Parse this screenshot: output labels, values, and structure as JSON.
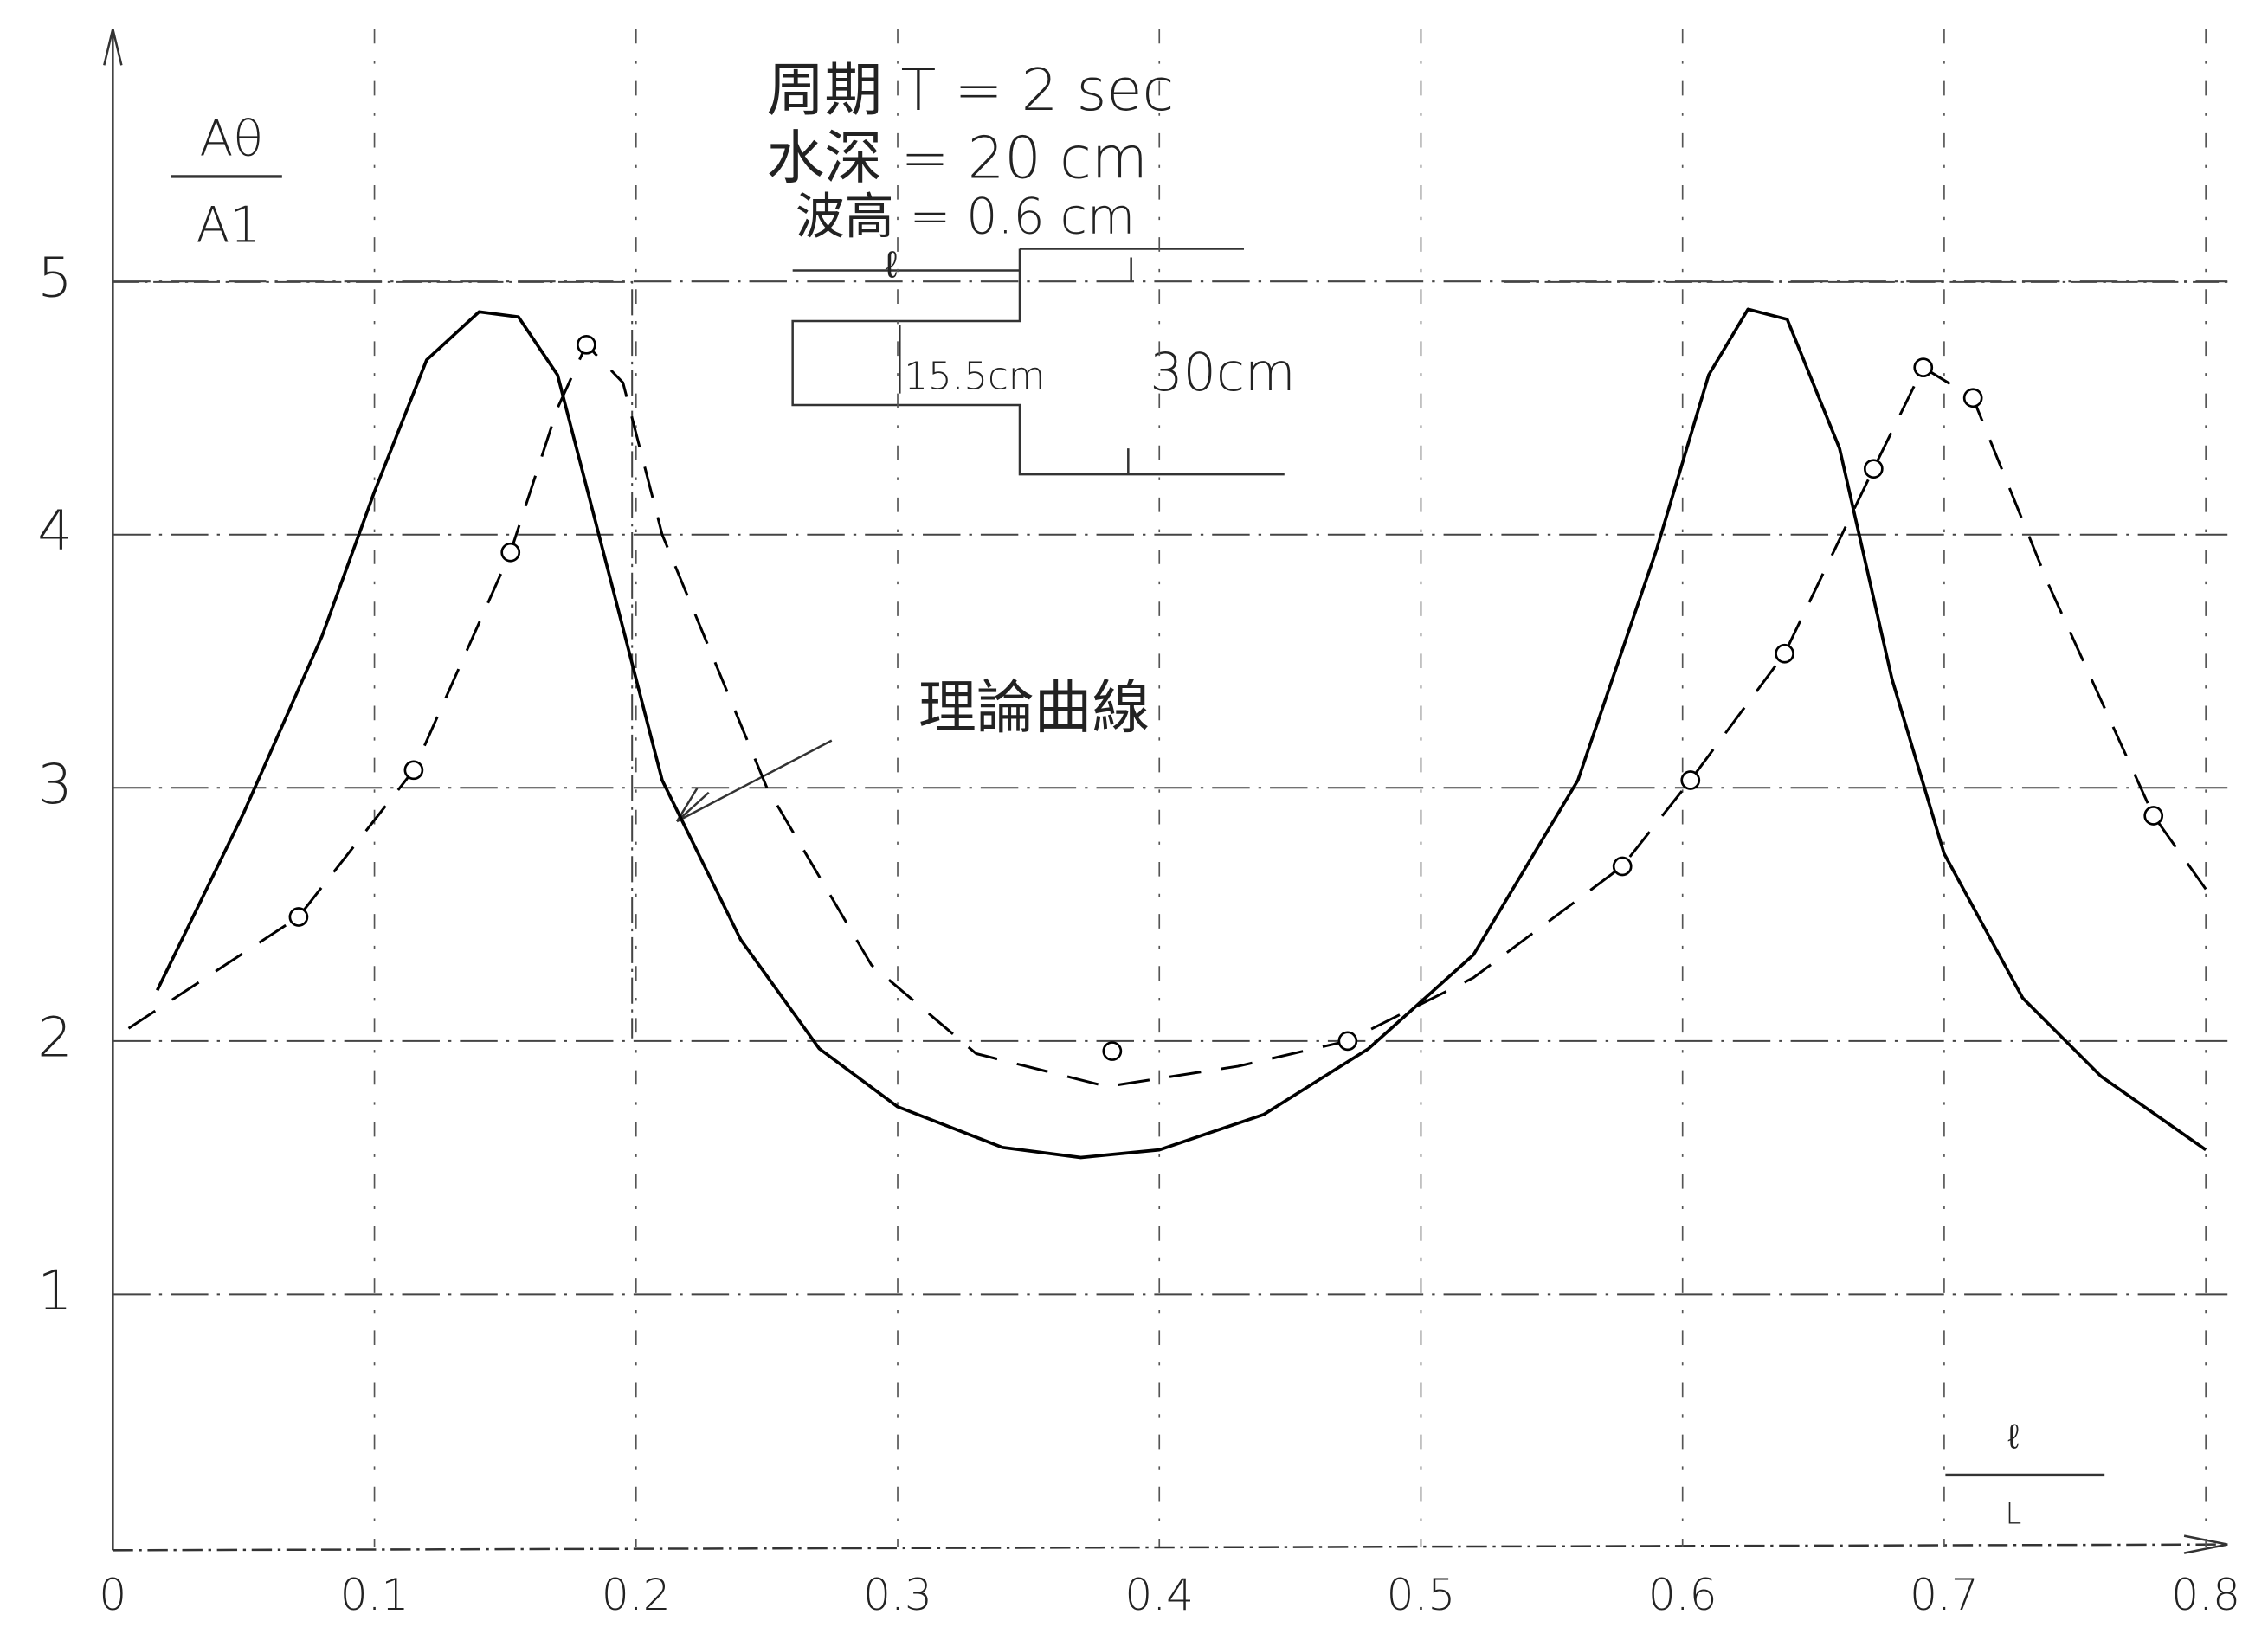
{
  "chart_data": {
    "type": "line",
    "ylabel": {
      "numerator": "Aθ",
      "denominator": "A1"
    },
    "xlabel": {
      "numerator": "ℓ",
      "denominator": "L"
    },
    "annotations": {
      "period": "周期 T = 2 sec",
      "depth": "水深 = 20 cm",
      "height": "波高 = 0.6 cm",
      "step_length": "ℓ",
      "shelf_depth": "15.5cm",
      "deep_depth": "30cm",
      "theory": "理論曲線"
    },
    "xlim": [
      0,
      0.8
    ],
    "ylim": [
      0,
      5.7
    ],
    "xticks": [
      0,
      0.1,
      0.2,
      0.3,
      0.4,
      0.5,
      0.6,
      0.7,
      0.8
    ],
    "yticks": [
      1,
      2,
      3,
      4,
      5
    ],
    "grid": true,
    "series": [
      {
        "style": "solid",
        "color": "#000000",
        "x": [
          0.017,
          0.05,
          0.08,
          0.1,
          0.12,
          0.14,
          0.155,
          0.17,
          0.19,
          0.21,
          0.24,
          0.27,
          0.3,
          0.34,
          0.37,
          0.4,
          0.44,
          0.48,
          0.52,
          0.56,
          0.59,
          0.61,
          0.625,
          0.64,
          0.66,
          0.68,
          0.7,
          0.73,
          0.76,
          0.8
        ],
        "values": [
          2.2,
          2.9,
          3.6,
          4.17,
          4.69,
          4.88,
          4.86,
          4.63,
          3.83,
          3.03,
          2.4,
          1.97,
          1.74,
          1.58,
          1.54,
          1.57,
          1.71,
          1.97,
          2.34,
          3.03,
          3.94,
          4.63,
          4.89,
          4.85,
          4.34,
          3.43,
          2.74,
          2.17,
          1.86,
          1.57
        ]
      },
      {
        "style": "dashed",
        "color": "#000000",
        "x": [
          0.006,
          0.071,
          0.115,
          0.152,
          0.17,
          0.181,
          0.195,
          0.21,
          0.25,
          0.29,
          0.33,
          0.38,
          0.43,
          0.472,
          0.52,
          0.577,
          0.603,
          0.639,
          0.673,
          0.692,
          0.711,
          0.74,
          0.78,
          0.8
        ],
        "values": [
          2.05,
          2.49,
          3.07,
          3.93,
          4.5,
          4.75,
          4.6,
          4.0,
          3.0,
          2.3,
          1.95,
          1.82,
          1.9,
          2.0,
          2.25,
          2.69,
          3.03,
          3.53,
          4.26,
          4.66,
          4.54,
          3.8,
          2.89,
          2.6
        ]
      },
      {
        "style": "markers",
        "color": "#000000",
        "x": [
          0.071,
          0.115,
          0.152,
          0.181,
          0.382,
          0.472,
          0.577,
          0.603,
          0.639,
          0.673,
          0.692,
          0.711,
          0.78
        ],
        "values": [
          2.49,
          3.07,
          3.93,
          4.75,
          1.96,
          2.0,
          2.69,
          3.03,
          3.53,
          4.26,
          4.66,
          4.54,
          2.89
        ]
      }
    ]
  }
}
